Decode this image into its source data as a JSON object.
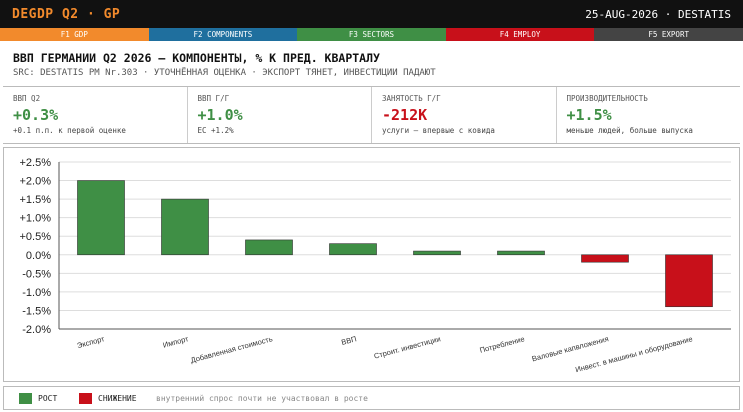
{
  "header": {
    "ticker": "DEGDP Q2 · GP",
    "date_source": "25-AUG-2026 · DESTATIS"
  },
  "fkeys": [
    {
      "label": "F1 GDP",
      "color": "#f28a2c"
    },
    {
      "label": "F2 COMPONENTS",
      "color": "#1f6f9e"
    },
    {
      "label": "F3 SECTORS",
      "color": "#3f8f45"
    },
    {
      "label": "F4 EMPLOY",
      "color": "#c8101a"
    },
    {
      "label": "F5 EXPORT",
      "color": "#444444"
    }
  ],
  "headline": "ВВП ГЕРМАНИИ Q2 2026 — КОМПОНЕНТЫ, % К ПРЕД. КВАРТАЛУ",
  "subline": "SRC: DESTATIS PM Nr.303 · УТОЧНЁННАЯ ОЦЕНКА · ЭКСПОРТ ТЯНЕТ, ИНВЕСТИЦИИ ПАДАЮТ",
  "kpis": [
    {
      "label": "ВВП Q2",
      "value": "+0.3%",
      "note": "+0.1 п.п. к первой оценке",
      "color": "#3f8f45"
    },
    {
      "label": "ВВП Г/Г",
      "value": "+1.0%",
      "note": "ЕС +1.2%",
      "color": "#3f8f45"
    },
    {
      "label": "ЗАНЯТОСТЬ Г/Г",
      "value": "-212K",
      "note": "услуги — впервые с ковида",
      "color": "#c8101a"
    },
    {
      "label": "ПРОИЗВОДИТЕЛЬНОСТЬ",
      "value": "+1.5%",
      "note": "меньше людей, больше выпуска",
      "color": "#3f8f45"
    }
  ],
  "chart_data": {
    "type": "bar",
    "categories": [
      "Экспорт",
      "Импорт",
      "Добавленная стоимость",
      "ВВП",
      "Строит. инвестиции",
      "Потребление",
      "Валовые капвложения",
      "Инвест. в машины и оборудование"
    ],
    "values": [
      2.0,
      1.5,
      0.4,
      0.3,
      0.1,
      0.1,
      -0.2,
      -1.4
    ],
    "ylim": [
      -2.0,
      2.5
    ],
    "yticks": [
      "+2.5%",
      "+2.0%",
      "+1.5%",
      "+1.0%",
      "+0.5%",
      "0.0%",
      "-0.5%",
      "-1.0%",
      "-1.5%",
      "-2.0%"
    ],
    "grid": true,
    "positive_color": "#3f8f45",
    "negative_color": "#c8101a"
  },
  "legend": {
    "items": [
      {
        "label": "РОСТ",
        "color": "#3f8f45"
      },
      {
        "label": "СНИЖЕНИЕ",
        "color": "#c8101a"
      }
    ],
    "note": "внутренний спрос почти не участвовал в росте"
  }
}
